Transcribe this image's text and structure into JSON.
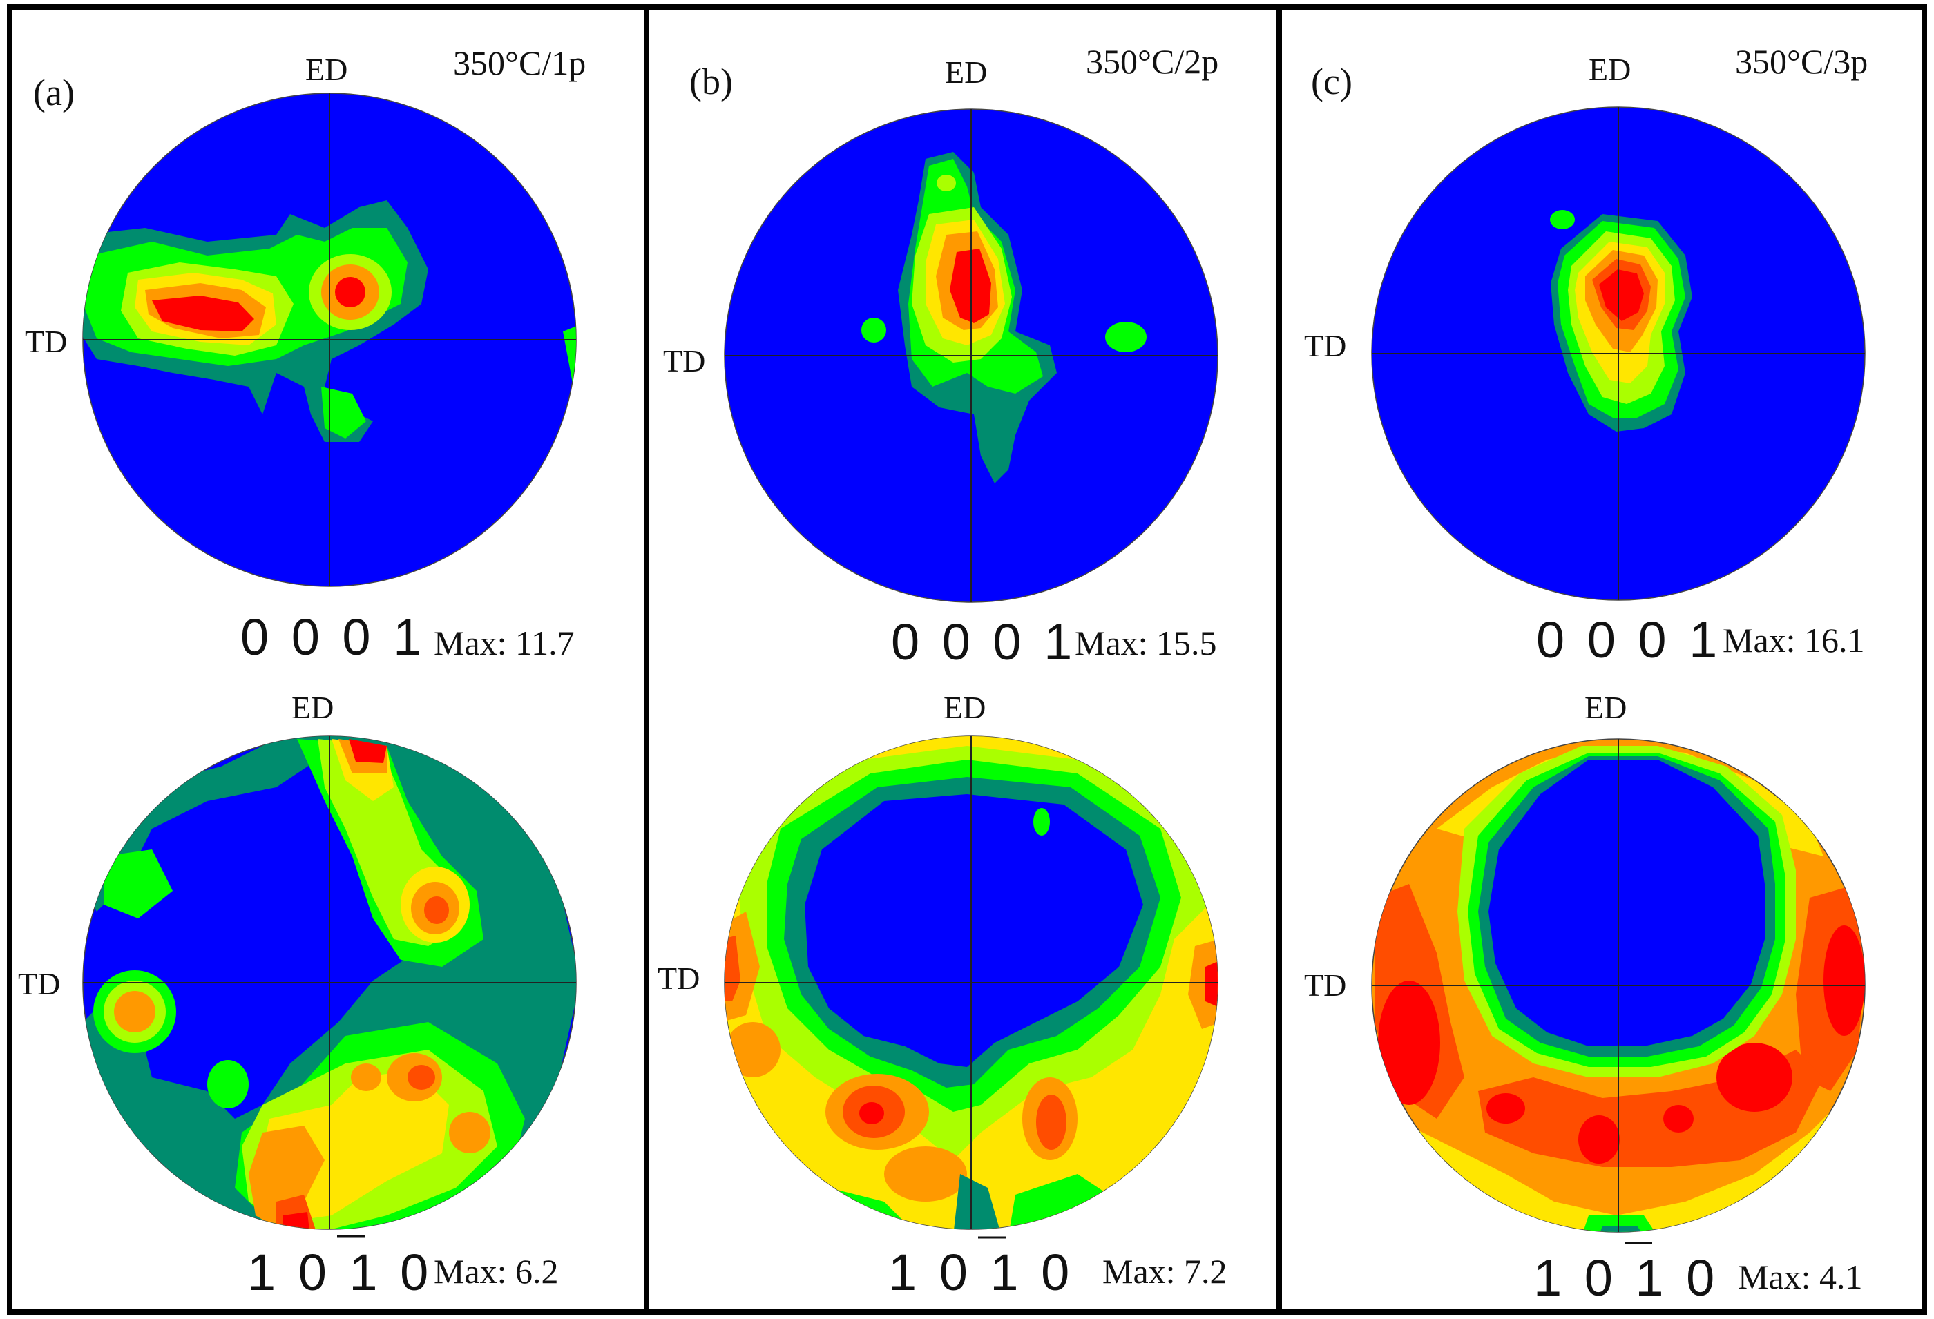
{
  "colors": {
    "background": "#0000ff",
    "level1": "#008c6e",
    "level2": "#00ff00",
    "level3": "#aaff00",
    "level4": "#ffe600",
    "level5": "#ff9900",
    "level6": "#ff4d00",
    "level7": "#ff0000"
  },
  "axes": {
    "top": "ED",
    "left": "TD"
  },
  "panels": [
    {
      "letter": "(a)",
      "condition": "350°C/1p",
      "basal": {
        "plane": "0 0 0 1",
        "max": "Max: 11.7"
      },
      "prism": {
        "plane": "1 0 1 0",
        "max": "Max: 6.2"
      }
    },
    {
      "letter": "(b)",
      "condition": "350°C/2p",
      "basal": {
        "plane": "0 0 0 1",
        "max": "Max: 15.5"
      },
      "prism": {
        "plane": "1 0 1 0",
        "max": "Max: 7.2"
      }
    },
    {
      "letter": "(c)",
      "condition": "350°C/3p",
      "basal": {
        "plane": "0 0 0 1",
        "max": "Max: 16.1"
      },
      "prism": {
        "plane": "1 0 1 0",
        "max": "Max: 4.1"
      }
    }
  ]
}
